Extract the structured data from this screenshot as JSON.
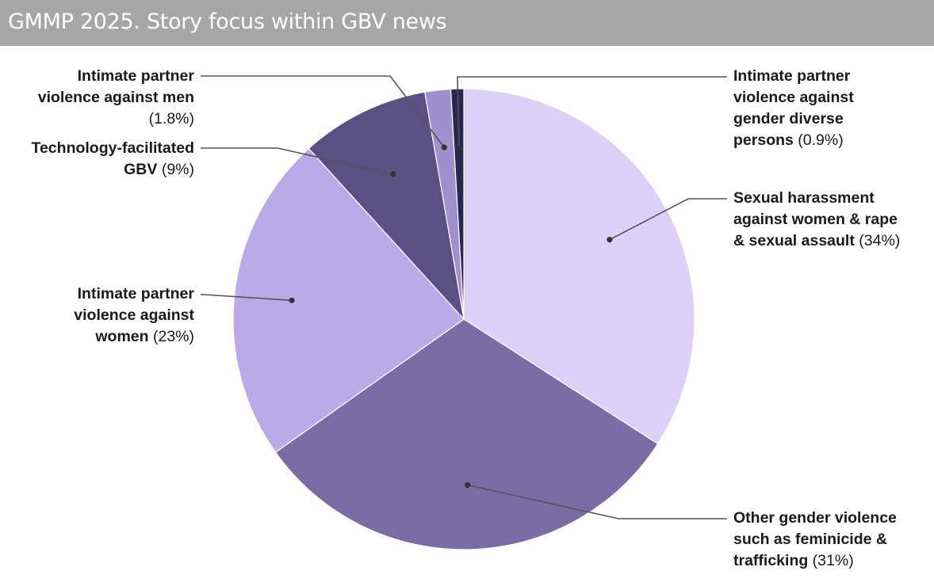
{
  "chart_data": {
    "type": "pie",
    "title": "GMMP 2025. Story focus within GBV news",
    "slices": [
      {
        "label_lines": [
          "Sexual harassment",
          "against women & rape",
          "& sexual assault"
        ],
        "value": 34,
        "value_label": "(34%)",
        "color": "#dcd0f8"
      },
      {
        "label_lines": [
          "Other gender violence",
          "such as feminicide &",
          "trafficking"
        ],
        "value": 31,
        "value_label": "(31%)",
        "color": "#7b6ca6"
      },
      {
        "label_lines": [
          "Intimate partner",
          "violence against",
          "women"
        ],
        "value": 23,
        "value_label": "(23%)",
        "color": "#bbaae8"
      },
      {
        "label_lines": [
          "Technology-facilitated",
          "GBV"
        ],
        "value": 9,
        "value_label": "(9%)",
        "color": "#5b5084"
      },
      {
        "label_lines": [
          "Intimate partner",
          "violence against men"
        ],
        "value": 1.8,
        "value_label": "(1.8%)",
        "color": "#9f90cf"
      },
      {
        "label_lines": [
          "Intimate partner",
          "violence against",
          "gender diverse",
          "persons"
        ],
        "value": 0.9,
        "value_label": "(0.9%)",
        "color": "#2a2450"
      }
    ]
  }
}
